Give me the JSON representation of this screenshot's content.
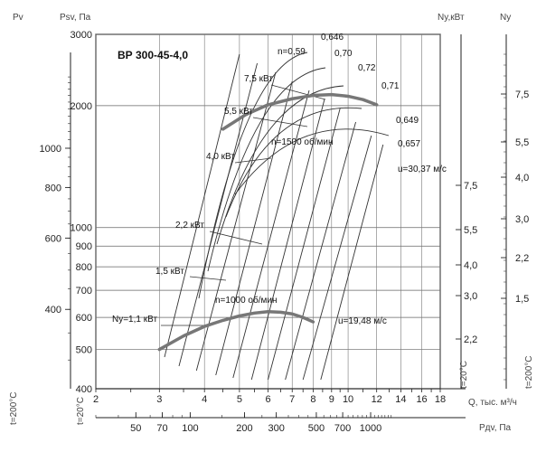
{
  "chart_data": {
    "type": "line",
    "title": "ВР 300-45-4,0",
    "axes": {
      "pv_label": "Pv",
      "pv_ticks": [
        "1000",
        "800",
        "600",
        "400"
      ],
      "pv_temp_label": "t=200°C",
      "psv_label": "Psv, Па",
      "psv_ticks": [
        "3000",
        "2000",
        "1000",
        "900",
        "800",
        "700",
        "600",
        "500",
        "400"
      ],
      "psv_temp_label": "t=20°C",
      "ny_kw_label": "Ny,кВт",
      "ny_kw_ticks": [
        "7,5",
        "5,5",
        "4,0",
        "3,0",
        "2,2"
      ],
      "ny_kw_temp_label": "t=20°C",
      "ny_label": "Ny",
      "ny_ticks": [
        "7,5",
        "5,5",
        "4,0",
        "3,0",
        "2,2",
        "1,5"
      ],
      "ny_temp_label": "t=200°C",
      "q_label": "Q, тыс. м³/ч",
      "q_ticks": [
        "2",
        "3",
        "4",
        "5",
        "6",
        "7",
        "8",
        "9",
        "10",
        "12",
        "14",
        "16",
        "18"
      ],
      "pdv_label": "Pдv, Па",
      "pdv_ticks": [
        "50",
        "70",
        "100",
        "200",
        "300",
        "500",
        "700",
        "1000"
      ]
    },
    "series": [
      {
        "name": "n=1500 об/мин",
        "x": [
          4.5,
          5.2,
          6.0,
          7.0,
          8.0,
          9.0,
          10.0,
          11.0,
          12.0
        ],
        "y": [
          1750,
          1900,
          2010,
          2080,
          2120,
          2130,
          2110,
          2070,
          2010
        ]
      },
      {
        "name": "n=1000 об/мин",
        "x": [
          3.0,
          3.5,
          4.0,
          4.5,
          5.0,
          5.5,
          6.0,
          6.5,
          7.0,
          7.5,
          8.0
        ],
        "y": [
          500,
          540,
          570,
          590,
          605,
          615,
          620,
          618,
          612,
          600,
          585
        ]
      }
    ],
    "efficiency_labels": [
      "n=0,59",
      "0,646",
      "0,70",
      "0,72",
      "0,71",
      "0,649",
      "0,657"
    ],
    "power_labels": [
      "7,5 кВт",
      "5,5 кВт",
      "4,0 кВт",
      "2,2 кВт",
      "1,5 кВт",
      "Ny=1,1 кВт"
    ],
    "speed_labels": [
      "u=30,37 м/с",
      "u=19,48 м/с"
    ]
  }
}
